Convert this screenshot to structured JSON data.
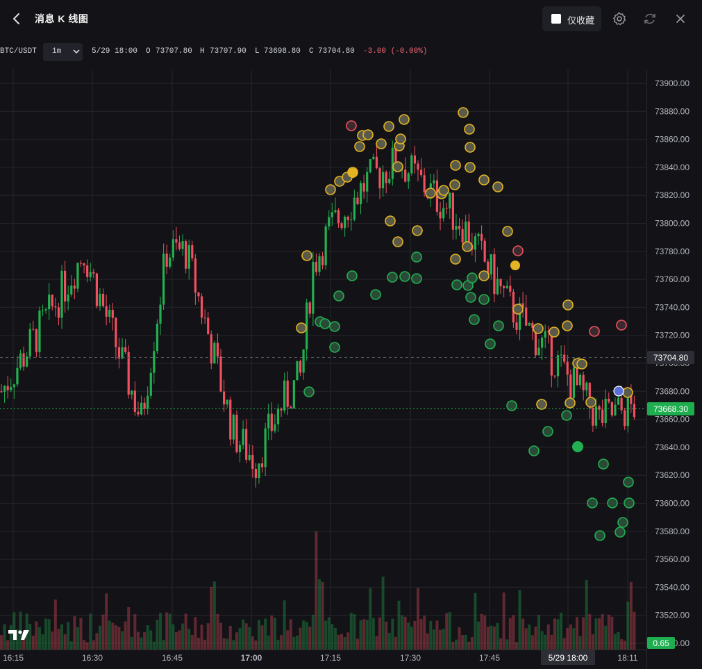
{
  "header": {
    "title": "消息 K 线图",
    "favorites_label": "仅收藏",
    "icons": [
      "back-arrow-icon",
      "settings-gear-icon",
      "refresh-icon",
      "close-icon"
    ]
  },
  "ohlc": {
    "symbol": "BTC/USDT",
    "interval": "1m",
    "datetime": "5/29 18:00",
    "o_label": "O",
    "o": "73707.80",
    "h_label": "H",
    "h": "73707.90",
    "l_label": "L",
    "l": "73698.80",
    "c_label": "C",
    "c": "73704.80",
    "change": "-3.00 (-0.00%)"
  },
  "colors": {
    "up": "#22b050",
    "down": "#f0505f",
    "background": "#131317",
    "grid": "#24252b",
    "gold": "#e5b422"
  },
  "chart_data": {
    "type": "candlestick",
    "y_ticks": [
      "73900.00",
      "73880.00",
      "73860.00",
      "73840.00",
      "73820.00",
      "73800.00",
      "73780.00",
      "73760.00",
      "73740.00",
      "73720.00",
      "73700.00",
      "73680.00",
      "73660.00",
      "73640.00",
      "73620.00",
      "73600.00",
      "73580.00",
      "73560.00",
      "73540.00",
      "73520.00",
      "73500.00"
    ],
    "ylim": [
      73500,
      73910
    ],
    "x_ticks": [
      "16:15",
      "16:30",
      "16:45",
      "17:00",
      "17:15",
      "17:30",
      "17:45",
      "5/29 18:00",
      "18:11"
    ],
    "crosshair_price": "73704.80",
    "last_price": "73668.30",
    "volume_label": "0.65"
  }
}
